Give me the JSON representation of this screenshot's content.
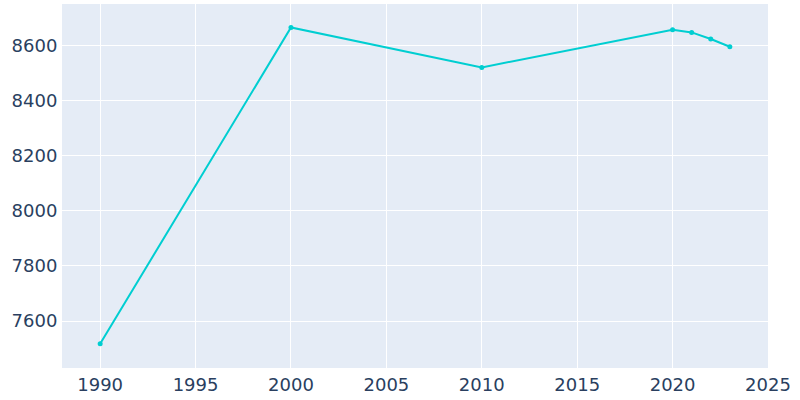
{
  "chart_data": {
    "type": "line",
    "x": [
      1990,
      2000,
      2010,
      2020,
      2021,
      2022,
      2023
    ],
    "values": [
      7518,
      8665,
      8520,
      8657,
      8647,
      8623,
      8595
    ],
    "color": "#00CED1",
    "marker": "circle",
    "xlim": [
      1988,
      2025
    ],
    "xticks": [
      1990,
      1995,
      2000,
      2005,
      2010,
      2015,
      2020,
      2025
    ],
    "ylim": [
      7430,
      8750
    ],
    "yticks": [
      7600,
      7800,
      8000,
      8200,
      8400,
      8600
    ],
    "grid": true
  }
}
